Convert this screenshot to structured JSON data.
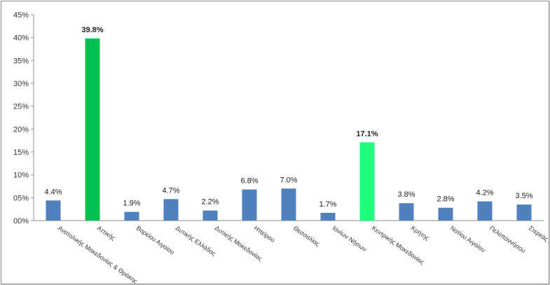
{
  "chart_data": {
    "type": "bar",
    "categories": [
      "Ανατολικής Μακεδονίας & Θράκης",
      "Αττικής",
      "Βορείου Αιγαίου",
      "Δυτικής Ελλάδας",
      "Δυτικής Μακεδονίας",
      "Ηπείρου",
      "Θεσσαλίας",
      "Ιονίων Νήσων",
      "Κεντρικής Μακεδονίας",
      "Κρήτης",
      "Νοτίου Αιγαίου",
      "Πελοποννήσου",
      "Στερεάς Ελλάδας"
    ],
    "values": [
      4.4,
      39.8,
      1.9,
      4.7,
      2.2,
      6.8,
      7.0,
      1.7,
      17.1,
      3.8,
      2.8,
      4.2,
      3.5
    ],
    "value_labels": [
      "4.4%",
      "39.8%",
      "1.9%",
      "4.7%",
      "2.2%",
      "6.8%",
      "7.0%",
      "1.7%",
      "17.1%",
      "3.8%",
      "2.8%",
      "4.2%",
      "3.5%"
    ],
    "highlight": [
      false,
      true,
      false,
      false,
      false,
      false,
      false,
      false,
      true,
      false,
      false,
      false,
      false
    ],
    "colors": [
      "#4f81bd",
      "#00c050",
      "#4f81bd",
      "#4f81bd",
      "#4f81bd",
      "#4f81bd",
      "#4f81bd",
      "#4f81bd",
      "#1cff7c",
      "#4f81bd",
      "#4f81bd",
      "#4f81bd",
      "#4f81bd"
    ],
    "yticks": [
      "00%",
      "05%",
      "10%",
      "15%",
      "20%",
      "25%",
      "30%",
      "35%",
      "40%",
      "45%"
    ],
    "ylim": [
      0,
      45
    ],
    "title": "",
    "xlabel": "",
    "ylabel": "",
    "grid": false,
    "legend": "none"
  }
}
